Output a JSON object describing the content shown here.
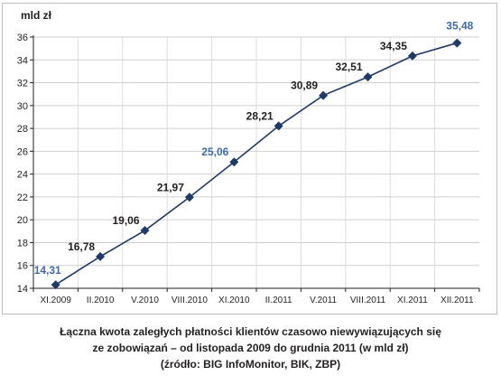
{
  "chart_data": {
    "type": "line",
    "ylabel": "mld zł",
    "categories": [
      "XI.2009",
      "II.2010",
      "V.2010",
      "VIII.2010",
      "XI.2010",
      "II.2011",
      "V.2011",
      "VIII.2011",
      "XI.2011",
      "XII.2011"
    ],
    "values": [
      14.31,
      16.78,
      19.06,
      21.97,
      25.06,
      28.21,
      30.89,
      32.51,
      34.35,
      35.48
    ],
    "value_labels": [
      "14,31",
      "16,78",
      "19,06",
      "21,97",
      "25,06",
      "28,21",
      "30,89",
      "32,51",
      "34,35",
      "35,48"
    ],
    "highlighted_labels": [
      0,
      4,
      9
    ],
    "ylim": [
      14,
      36
    ],
    "yticks": [
      14,
      16,
      18,
      20,
      22,
      24,
      26,
      28,
      30,
      32,
      34,
      36
    ],
    "grid": true,
    "line_color": "#1f3a68",
    "highlight_color": "#3d6aa8",
    "label_color": "#231f20"
  },
  "caption": {
    "line1": "Łączna kwota zaległych płatności klientów czasowo niewywiązujących się",
    "line2": "ze zobowiązań – od listopada 2009 do grudnia 2011 (w mld zł)",
    "line3": "(źródło: BIG InfoMonitor, BIK, ZBP)"
  }
}
